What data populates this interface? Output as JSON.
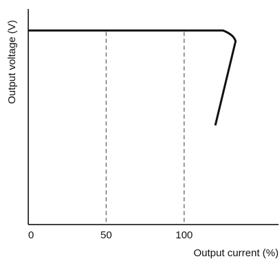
{
  "chart_data": {
    "type": "line",
    "xlabel": "Output current (%)",
    "ylabel": "Output voltage (V)",
    "xlim": [
      0,
      150
    ],
    "ylim": [
      0,
      100
    ],
    "x_ticks": [
      0,
      50,
      100
    ],
    "x_tick_labels": [
      "0",
      "50",
      "100"
    ],
    "reference_lines_x": [
      50,
      100
    ],
    "grid": false,
    "series": [
      {
        "points": [
          {
            "x": 0,
            "y": 90
          },
          {
            "x": 125,
            "y": 90
          },
          {
            "x": 132,
            "y": 88
          },
          {
            "x": 133,
            "y": 85
          },
          {
            "x": 120,
            "y": 46
          }
        ]
      }
    ],
    "colors": {
      "curve": "#111111",
      "axes": "#000000",
      "reference_lines": "#333333"
    }
  }
}
